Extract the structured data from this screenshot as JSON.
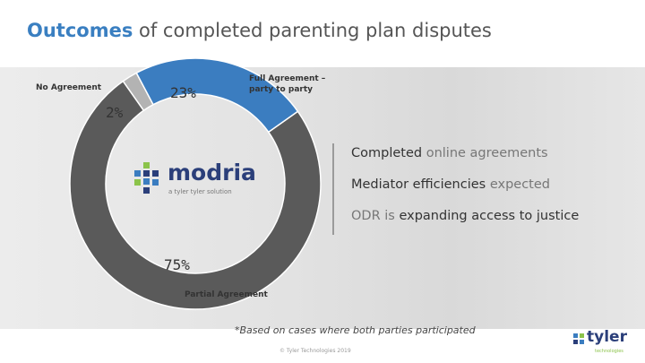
{
  "title_parts": [
    "Outcomes",
    " of completed parenting plan disputes"
  ],
  "chart_data": {
    "type": "pie",
    "donut": true,
    "categories": [
      "Full Agreement – party to party",
      "Partial Agreement",
      "No Agreement"
    ],
    "values": [
      23,
      75,
      2
    ],
    "value_labels": [
      "23%",
      "75%",
      "2%"
    ],
    "colors": [
      "#3b7dc0",
      "#5a5a5a",
      "#b3b3b3"
    ]
  },
  "bullets": [
    [
      {
        "text": "Completed",
        "emphasis": true
      },
      {
        "text": " online agreements",
        "emphasis": false
      }
    ],
    [
      {
        "text": "Mediator efficiencies",
        "emphasis": true
      },
      {
        "text": " expected",
        "emphasis": false
      }
    ],
    [
      {
        "text": "ODR is ",
        "emphasis": false
      },
      {
        "text": "expanding access to justice",
        "emphasis": true
      }
    ]
  ],
  "logo": {
    "name": "modria",
    "tagline": "a tyler tyler solution"
  },
  "footnote": "*Based on cases where both parties participated",
  "copyright": "© Tyler Technologies 2019",
  "brand": {
    "name": "tyler",
    "sub": "technologies"
  }
}
